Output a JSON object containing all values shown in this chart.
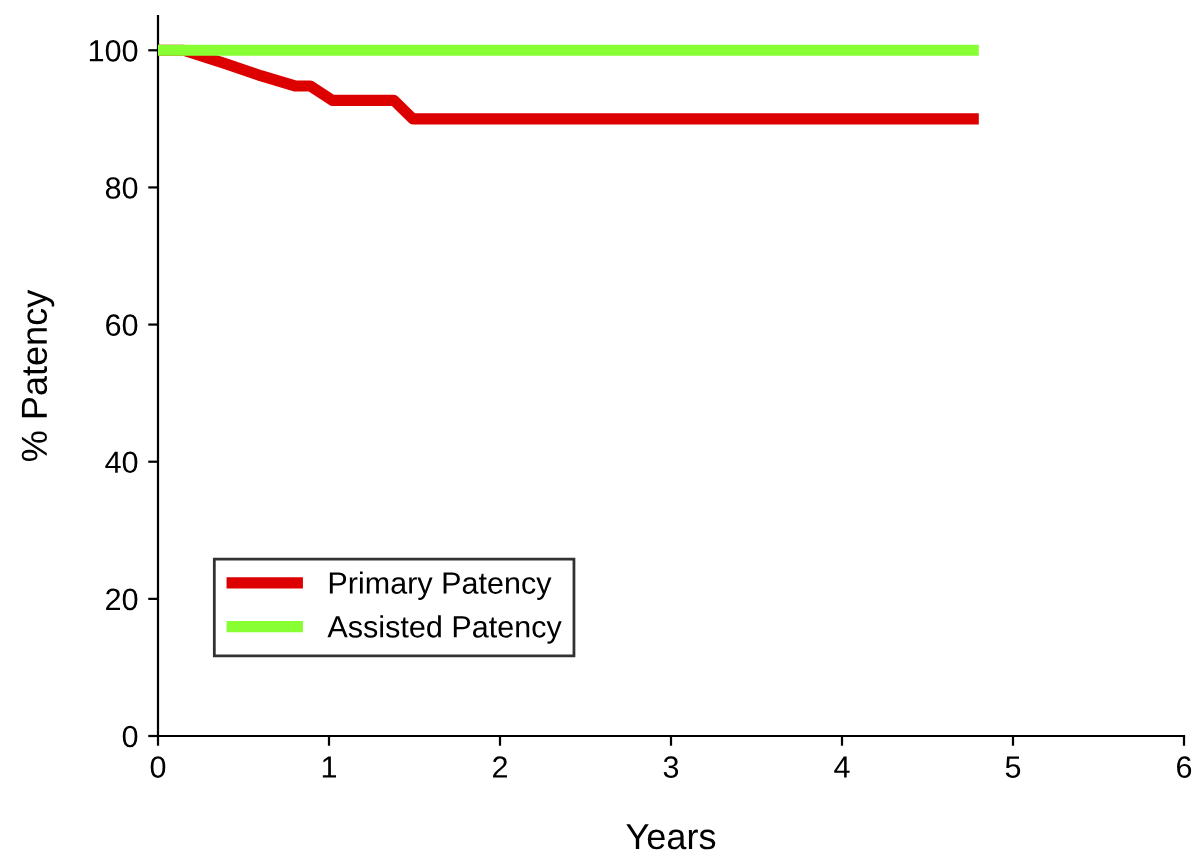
{
  "chart_data": {
    "type": "line",
    "xlabel": "Years",
    "ylabel": "% Patency",
    "xlim": [
      0,
      6
    ],
    "xticks": [
      0,
      1,
      2,
      3,
      4,
      5,
      6
    ],
    "ylim": [
      0,
      105
    ],
    "yticks": [
      0,
      20,
      40,
      60,
      80,
      100
    ],
    "grid": false,
    "legend": "bottom left",
    "marker": "none",
    "line_style": "solid",
    "series": [
      {
        "name": "Primary Patency",
        "color": "#dd0000",
        "x": [
          0,
          0.15,
          0.4,
          0.6,
          0.8,
          0.89,
          1.02,
          1.38,
          1.49,
          4.8
        ],
        "values": [
          100,
          100,
          98,
          96.3,
          94.8,
          94.8,
          92.7,
          92.7,
          90,
          90
        ]
      },
      {
        "name": "Assisted Patency",
        "color": "#88ff33",
        "x": [
          0,
          4.8
        ],
        "values": [
          100,
          100
        ]
      }
    ]
  }
}
